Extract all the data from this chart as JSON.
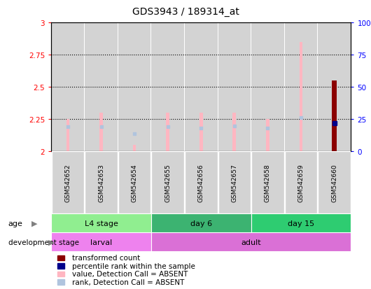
{
  "title": "GDS3943 / 189314_at",
  "samples": [
    "GSM542652",
    "GSM542653",
    "GSM542654",
    "GSM542655",
    "GSM542656",
    "GSM542657",
    "GSM542658",
    "GSM542659",
    "GSM542660"
  ],
  "ylim_left": [
    2.0,
    3.0
  ],
  "ylim_right": [
    0,
    100
  ],
  "yticks_left": [
    2.0,
    2.25,
    2.5,
    2.75,
    3.0
  ],
  "yticks_right": [
    0,
    25,
    50,
    75,
    100
  ],
  "ytick_labels_left": [
    "2",
    "2.25",
    "2.5",
    "2.75",
    "3"
  ],
  "ytick_labels_right": [
    "0",
    "25",
    "50",
    "75",
    "100%"
  ],
  "value_absent": [
    2.25,
    2.3,
    2.05,
    2.3,
    2.3,
    2.3,
    2.25,
    2.85,
    null
  ],
  "rank_absent_dot": [
    2.19,
    2.19,
    2.14,
    2.19,
    2.18,
    2.2,
    2.18,
    2.265,
    null
  ],
  "transformed_count": [
    null,
    null,
    null,
    null,
    null,
    null,
    null,
    null,
    2.55
  ],
  "percentile_rank": [
    null,
    null,
    null,
    null,
    null,
    null,
    null,
    null,
    22
  ],
  "age_groups": [
    {
      "label": "L4 stage",
      "start": 0,
      "end": 3,
      "color": "#90EE90"
    },
    {
      "label": "day 6",
      "start": 3,
      "end": 6,
      "color": "#3CB371"
    },
    {
      "label": "day 15",
      "start": 6,
      "end": 9,
      "color": "#2ECC71"
    }
  ],
  "dev_groups": [
    {
      "label": "larval",
      "start": 0,
      "end": 3,
      "color": "#EE82EE"
    },
    {
      "label": "adult",
      "start": 3,
      "end": 9,
      "color": "#DA70D6"
    }
  ],
  "bar_bg_color": "#D3D3D3",
  "absent_bar_color": "#FFB6C1",
  "absent_rank_dot_color": "#B0C4DE",
  "present_bar_color": "#8B0000",
  "present_rank_dot_color": "#00008B",
  "legend_items": [
    {
      "label": "transformed count",
      "color": "#8B0000"
    },
    {
      "label": "percentile rank within the sample",
      "color": "#00008B"
    },
    {
      "label": "value, Detection Call = ABSENT",
      "color": "#FFB6C1"
    },
    {
      "label": "rank, Detection Call = ABSENT",
      "color": "#B0C4DE"
    }
  ]
}
